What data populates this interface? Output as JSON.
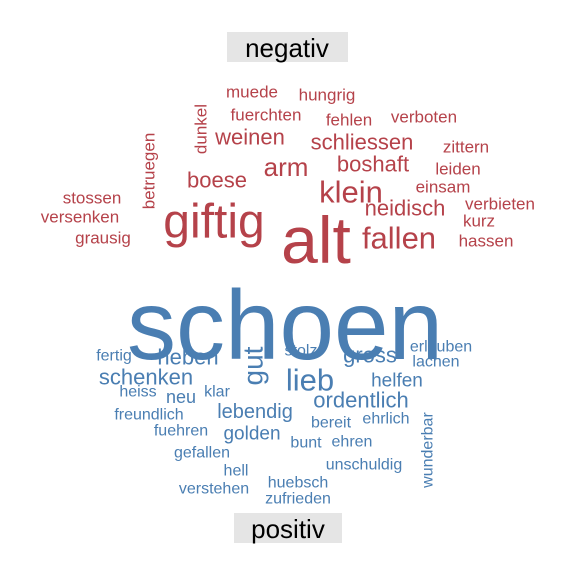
{
  "chart_data": {
    "type": "wordcloud",
    "title": "",
    "colors": {
      "negativ": "#b5424a",
      "positiv": "#4a7eb2",
      "label_bg": "#e5e5e5"
    },
    "groups": [
      {
        "name": "negativ",
        "label": "negativ",
        "words": [
          {
            "word": "alt",
            "weight": 10
          },
          {
            "word": "giftig",
            "weight": 9
          },
          {
            "word": "klein",
            "weight": 6
          },
          {
            "word": "fallen",
            "weight": 6
          },
          {
            "word": "arm",
            "weight": 5
          },
          {
            "word": "neidisch",
            "weight": 4
          },
          {
            "word": "boshaft",
            "weight": 4
          },
          {
            "word": "weinen",
            "weight": 4
          },
          {
            "word": "schliessen",
            "weight": 4
          },
          {
            "word": "boese",
            "weight": 4
          },
          {
            "word": "muede",
            "weight": 2
          },
          {
            "word": "hungrig",
            "weight": 2
          },
          {
            "word": "fuerchten",
            "weight": 2
          },
          {
            "word": "fehlen",
            "weight": 2
          },
          {
            "word": "verboten",
            "weight": 2
          },
          {
            "word": "dunkel",
            "weight": 2
          },
          {
            "word": "betruegen",
            "weight": 2
          },
          {
            "word": "zittern",
            "weight": 2
          },
          {
            "word": "leiden",
            "weight": 2
          },
          {
            "word": "einsam",
            "weight": 2
          },
          {
            "word": "stossen",
            "weight": 2
          },
          {
            "word": "versenken",
            "weight": 2
          },
          {
            "word": "verbieten",
            "weight": 2
          },
          {
            "word": "kurz",
            "weight": 2
          },
          {
            "word": "grausig",
            "weight": 2
          },
          {
            "word": "hassen",
            "weight": 2
          }
        ]
      },
      {
        "name": "positiv",
        "label": "positiv",
        "words": [
          {
            "word": "schoen",
            "weight": 14
          },
          {
            "word": "lieb",
            "weight": 6
          },
          {
            "word": "gut",
            "weight": 5
          },
          {
            "word": "gross",
            "weight": 4
          },
          {
            "word": "ordentlich",
            "weight": 4
          },
          {
            "word": "heben",
            "weight": 4
          },
          {
            "word": "schenken",
            "weight": 4
          },
          {
            "word": "lebendig",
            "weight": 3
          },
          {
            "word": "helfen",
            "weight": 3
          },
          {
            "word": "golden",
            "weight": 3
          },
          {
            "word": "neu",
            "weight": 3
          },
          {
            "word": "stolz",
            "weight": 2
          },
          {
            "word": "erlauben",
            "weight": 2
          },
          {
            "word": "lachen",
            "weight": 2
          },
          {
            "word": "fertig",
            "weight": 2
          },
          {
            "word": "heiss",
            "weight": 2
          },
          {
            "word": "klar",
            "weight": 2
          },
          {
            "word": "bereit",
            "weight": 2
          },
          {
            "word": "ehrlich",
            "weight": 2
          },
          {
            "word": "freundlich",
            "weight": 2
          },
          {
            "word": "fuehren",
            "weight": 2
          },
          {
            "word": "bunt",
            "weight": 2
          },
          {
            "word": "ehren",
            "weight": 2
          },
          {
            "word": "gefallen",
            "weight": 2
          },
          {
            "word": "unschuldig",
            "weight": 2
          },
          {
            "word": "wunderbar",
            "weight": 2
          },
          {
            "word": "hell",
            "weight": 2
          },
          {
            "word": "huebsch",
            "weight": 2
          },
          {
            "word": "verstehen",
            "weight": 2
          },
          {
            "word": "zufrieden",
            "weight": 2
          }
        ]
      }
    ]
  }
}
